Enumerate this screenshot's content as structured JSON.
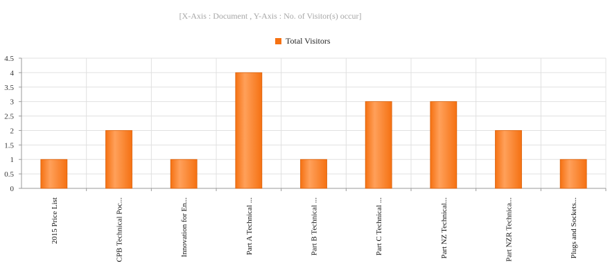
{
  "chart_data": {
    "type": "bar",
    "subtitle": "[X-Axis : Document , Y-Axis : No. of Visitor(s) occur]",
    "xlabel": "",
    "ylabel": "",
    "ylim": [
      0,
      4.5
    ],
    "yticks": [
      "0",
      "0.5",
      "1",
      "1.5",
      "2",
      "2.5",
      "3",
      "3.5",
      "4",
      "4.5"
    ],
    "grid": true,
    "legend_position": "top-center",
    "categories": [
      "2015 Price List",
      "CPB Technical Poc...",
      "Innovation for En...",
      "Part A Technical ...",
      "Part B Technical ...",
      "Part C Technical ...",
      "Part NZ Technical...",
      "Part NZR Technica...",
      "Plugs and Sockets..."
    ],
    "series": [
      {
        "name": "Total Visitors",
        "values": [
          1,
          2,
          1,
          4,
          1,
          3,
          3,
          2,
          1
        ]
      }
    ]
  },
  "colors": {
    "bar": "#f57112",
    "bar_light": "#ffa05a",
    "bar_edge": "#d9600a",
    "grid": "#e0e0e0",
    "axis": "#999999"
  }
}
